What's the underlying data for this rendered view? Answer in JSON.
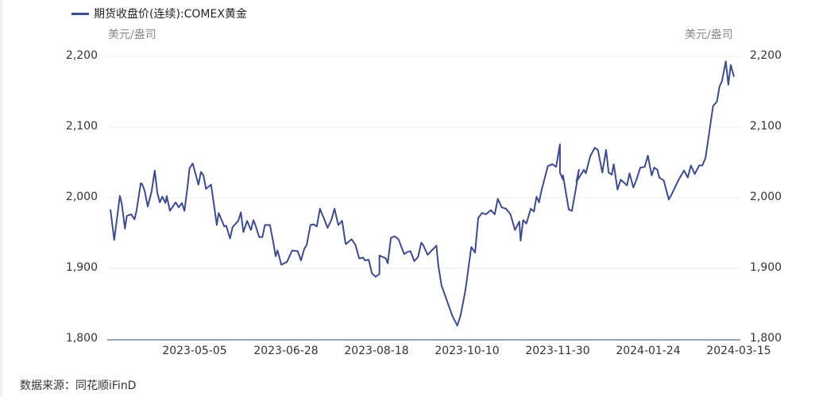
{
  "legend": {
    "label": "期货收盘价(连续):COMEX黄金",
    "color": "#3e4b8c"
  },
  "axes": {
    "unit_left": "美元/盎司",
    "unit_right": "美元/盎司",
    "y_ticks": [
      "2,200",
      "2,100",
      "2,000",
      "1,900",
      "1,800"
    ],
    "x_ticks": [
      "2023-05-05",
      "2023-06-28",
      "2023-08-18",
      "2023-10-10",
      "2023-11-30",
      "2024-01-24",
      "2024-03-15"
    ]
  },
  "source": "数据来源：同花顺iFinD",
  "chart_data": {
    "type": "line",
    "title": "",
    "xlabel": "",
    "ylabel": "美元/盎司",
    "ylabel_right": "美元/盎司",
    "ylim": [
      1800,
      2200
    ],
    "y_ticks": [
      1800,
      1900,
      2000,
      2100,
      2200
    ],
    "x_tick_labels": [
      "2023-05-05",
      "2023-06-28",
      "2023-08-18",
      "2023-10-10",
      "2023-11-30",
      "2024-01-24",
      "2024-03-15"
    ],
    "grid": "horizontal",
    "legend_position": "top-left",
    "dual_y_axis": true,
    "series": [
      {
        "name": "期货收盘价(连续):COMEX黄金",
        "color": "#3e4b8c",
        "approx_date_range": [
          "2023-03-20",
          "2024-03-18"
        ],
        "points_x_fraction": [
          0.005,
          0.011,
          0.02,
          0.023,
          0.028,
          0.031,
          0.038,
          0.043,
          0.046,
          0.053,
          0.055,
          0.059,
          0.064,
          0.07,
          0.075,
          0.079,
          0.083,
          0.087,
          0.092,
          0.094,
          0.099,
          0.108,
          0.113,
          0.118,
          0.122,
          0.127,
          0.13,
          0.135,
          0.144,
          0.148,
          0.152,
          0.156,
          0.164,
          0.169,
          0.173,
          0.176,
          0.185,
          0.188,
          0.194,
          0.198,
          0.207,
          0.211,
          0.215,
          0.221,
          0.227,
          0.231,
          0.234,
          0.24,
          0.245,
          0.249,
          0.257,
          0.262,
          0.266,
          0.269,
          0.275,
          0.284,
          0.292,
          0.301,
          0.306,
          0.311,
          0.315,
          0.321,
          0.326,
          0.331,
          0.336,
          0.34,
          0.342,
          0.348,
          0.354,
          0.359,
          0.365,
          0.371,
          0.376,
          0.377,
          0.386,
          0.392,
          0.398,
          0.404,
          0.407,
          0.413,
          0.418,
          0.424,
          0.43,
          0.43,
          0.44,
          0.443,
          0.448,
          0.454,
          0.46,
          0.469,
          0.474,
          0.479,
          0.485,
          0.491,
          0.496,
          0.499,
          0.506,
          0.52,
          0.523,
          0.528,
          0.545,
          0.553,
          0.558,
          0.565,
          0.567,
          0.575,
          0.581,
          0.586,
          0.592,
          0.598,
          0.606,
          0.612,
          0.617,
          0.623,
          0.63,
          0.637,
          0.644,
          0.651,
          0.653,
          0.657,
          0.662,
          0.669,
          0.674,
          0.678,
          0.682,
          0.686,
          0.696,
          0.703,
          0.709,
          0.715,
          0.715,
          0.72,
          0.72,
          0.729,
          0.734,
          0.743,
          0.745,
          0.741,
          0.753,
          0.756,
          0.763,
          0.77,
          0.775,
          0.782,
          0.788,
          0.792,
          0.797,
          0.8,
          0.806,
          0.811,
          0.821,
          0.825,
          0.831,
          0.836,
          0.842,
          0.849,
          0.854,
          0.86,
          0.864,
          0.869,
          0.872,
          0.879,
          0.887,
          0.892,
          0.902,
          0.911,
          0.917,
          0.922,
          0.928,
          0.935,
          0.94,
          0.945,
          0.957,
          0.963,
          0.967,
          0.971,
          0.977,
          0.981,
          0.985,
          0.99
        ],
        "values": [
          1984,
          1941,
          2003,
          1992,
          1957,
          1975,
          1977,
          1970,
          1981,
          2021,
          2020,
          2011,
          1988,
          2009,
          2039,
          2008,
          1994,
          2002,
          1993,
          2003,
          1982,
          1994,
          1987,
          1993,
          1982,
          2017,
          2042,
          2049,
          2019,
          2037,
          2032,
          2013,
          2019,
          1988,
          1962,
          1979,
          1960,
          1961,
          1943,
          1959,
          1968,
          1980,
          1952,
          1968,
          1955,
          1969,
          1962,
          1945,
          1945,
          1962,
          1962,
          1939,
          1918,
          1926,
          1906,
          1910,
          1926,
          1925,
          1912,
          1928,
          1934,
          1962,
          1963,
          1960,
          1985,
          1976,
          1972,
          1958,
          1969,
          1985,
          1962,
          1968,
          1938,
          1935,
          1942,
          1934,
          1915,
          1916,
          1912,
          1913,
          1894,
          1889,
          1893,
          1919,
          1915,
          1908,
          1944,
          1946,
          1942,
          1921,
          1924,
          1925,
          1911,
          1917,
          1937,
          1934,
          1920,
          1933,
          1905,
          1877,
          1834,
          1820,
          1834,
          1866,
          1878,
          1931,
          1923,
          1972,
          1979,
          1977,
          1983,
          1977,
          1999,
          1987,
          1985,
          1977,
          1955,
          1967,
          1940,
          1969,
          1964,
          1985,
          1981,
          2002,
          1994,
          2011,
          2045,
          2048,
          2044,
          2076,
          2036,
          2026,
          2032,
          1984,
          1982,
          2028,
          2040,
          2023,
          2040,
          2035,
          2059,
          2071,
          2068,
          2036,
          2068,
          2036,
          2033,
          2048,
          2012,
          2026,
          2018,
          2035,
          2015,
          2026,
          2043,
          2044,
          2060,
          2032,
          2043,
          2040,
          2029,
          2025,
          1998,
          2006,
          2025,
          2039,
          2029,
          2046,
          2034,
          2046,
          2046,
          2057,
          2130,
          2136,
          2157,
          2165,
          2193,
          2160,
          2188,
          2171,
          2169
        ]
      }
    ]
  }
}
